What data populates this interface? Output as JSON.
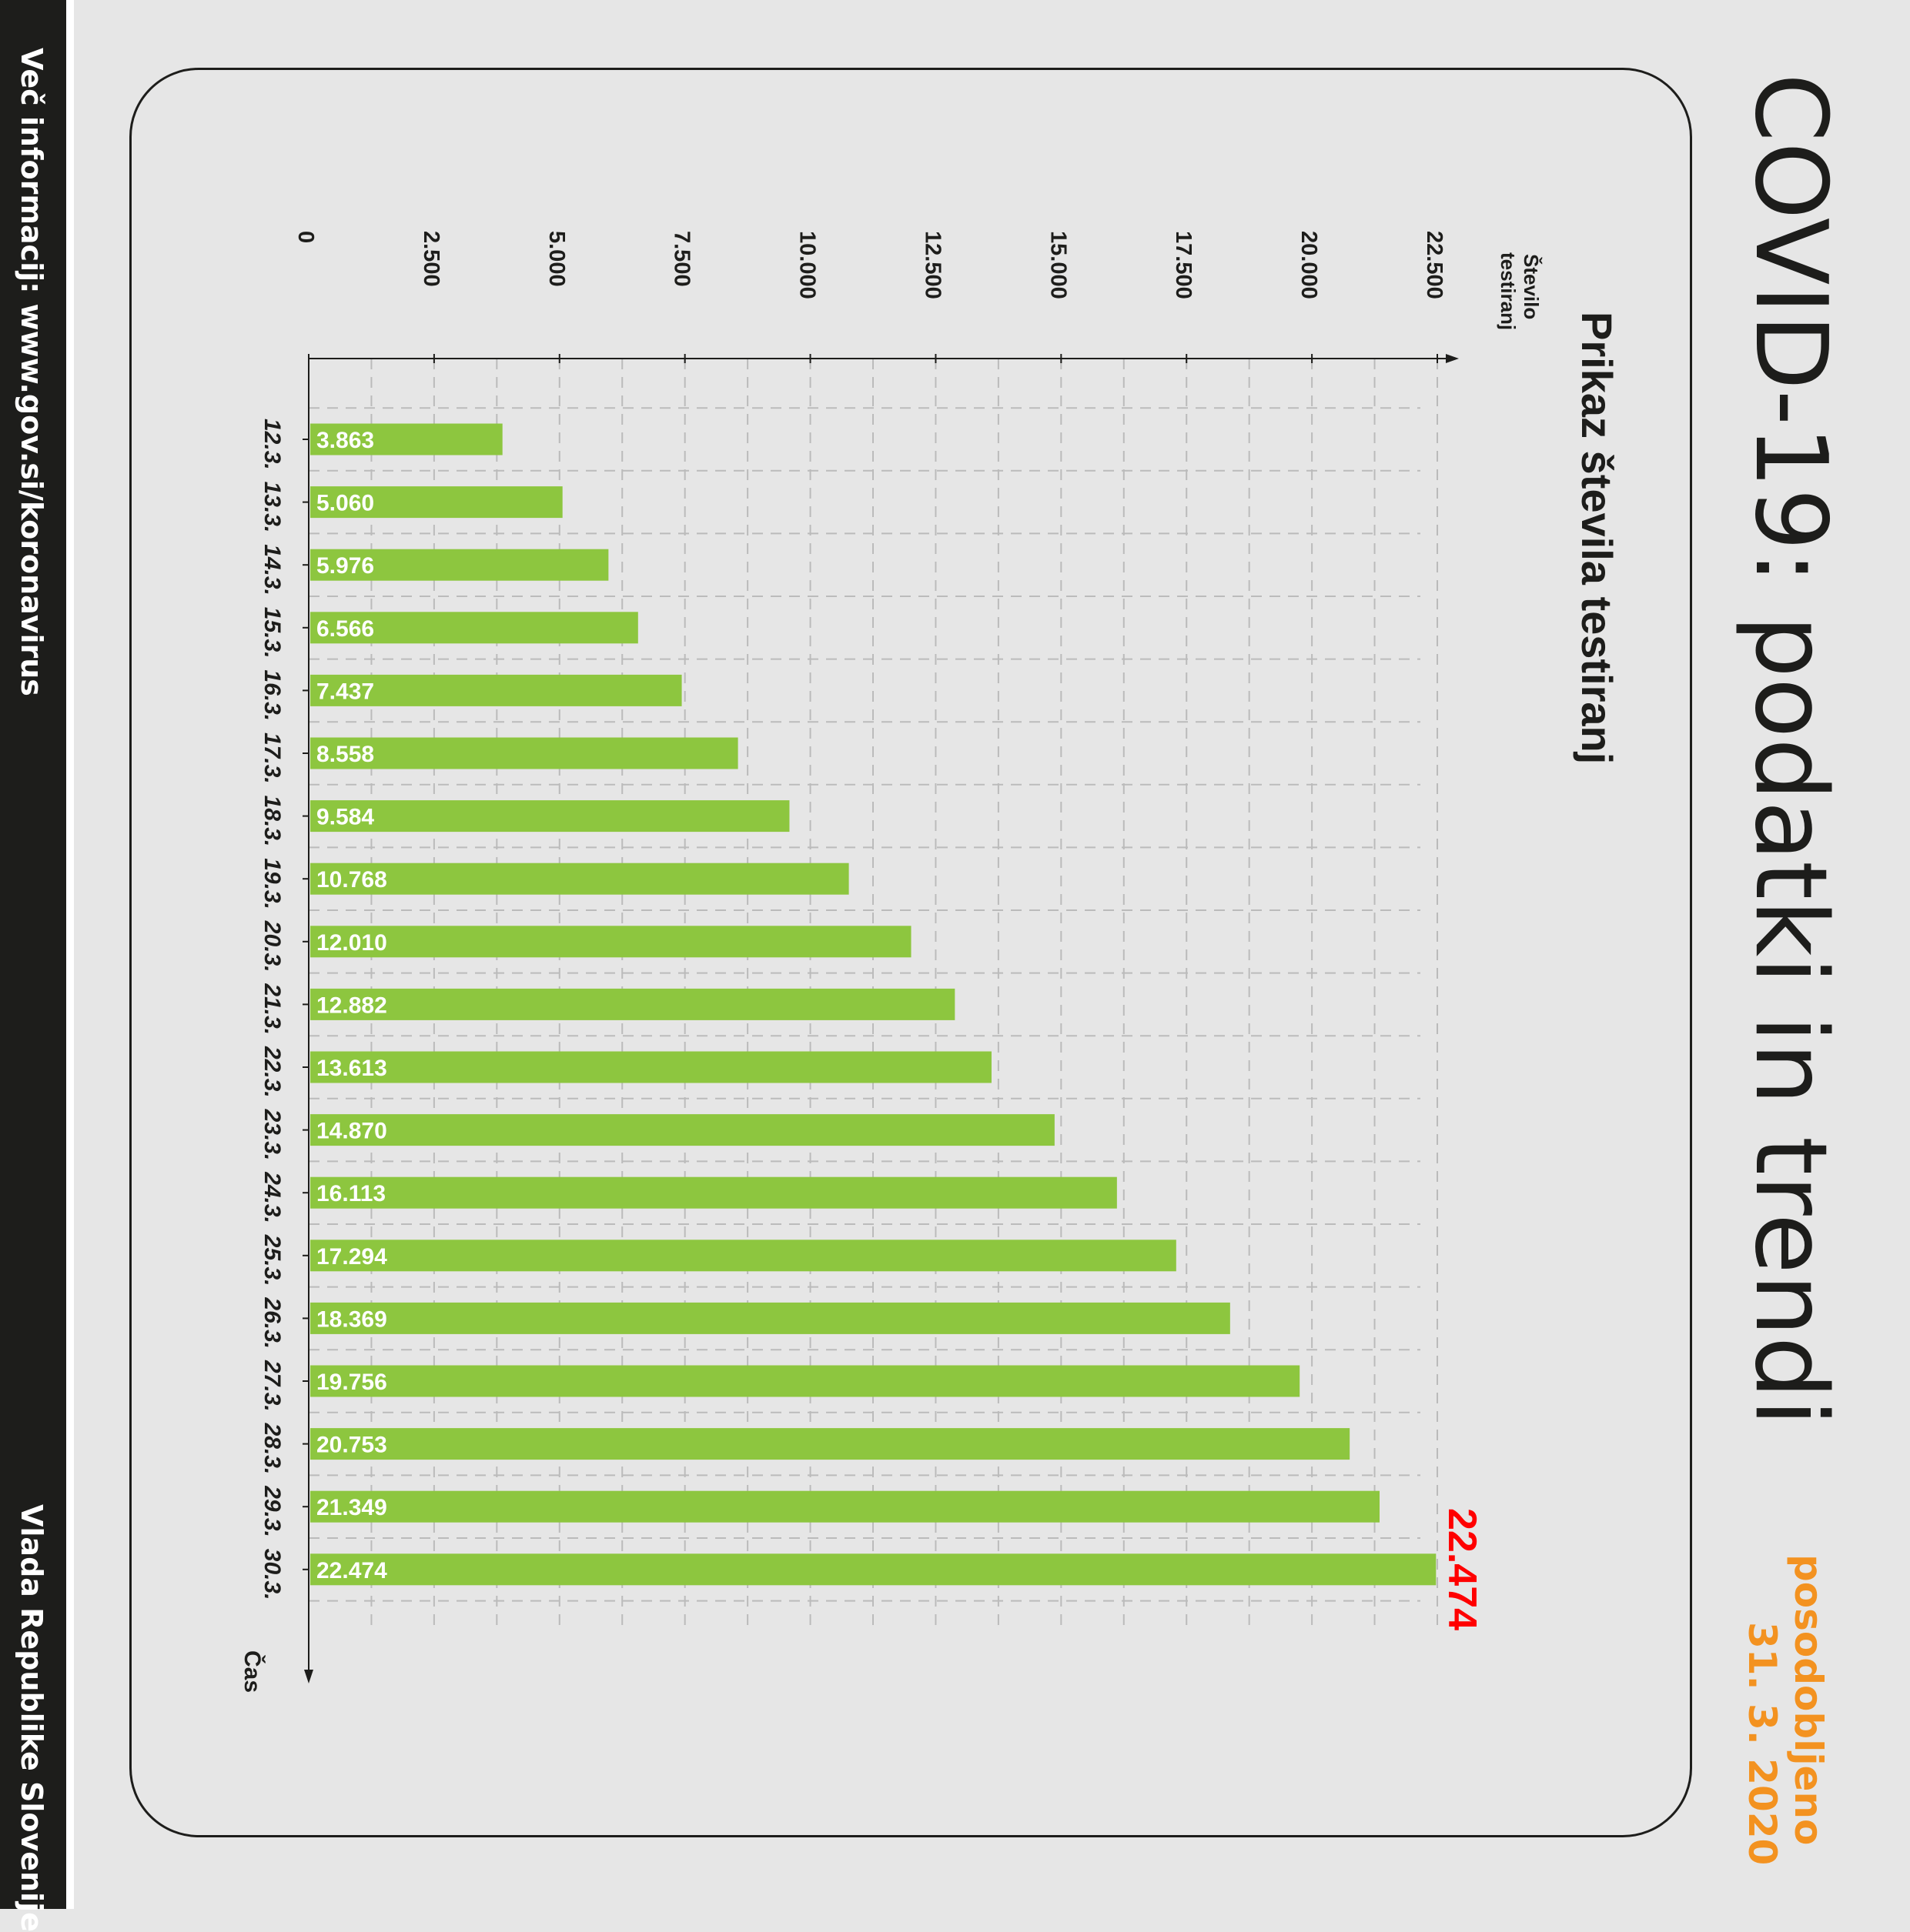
{
  "sidebar": {
    "more_info": "Več informacij: www.gov.si/koronavirus",
    "government": "Vlada Republike Slovenije"
  },
  "header": {
    "title": "COVID-19: podatki in trendi",
    "updated_label": "posodobljeno",
    "updated_date": "31. 3. 2020"
  },
  "colors": {
    "bar": "#8dc63f",
    "highlight": "#ff0000",
    "accent": "#f39220",
    "text": "#1d1d1b"
  },
  "chart_data": {
    "type": "bar",
    "orientation": "horizontal",
    "title": "Prikaz števila testiranj",
    "xlabel": "Število testiranj",
    "ylabel": "Čas",
    "categories": [
      "12.3.",
      "13.3.",
      "14.3.",
      "15.3.",
      "16.3.",
      "17.3.",
      "18.3.",
      "19.3.",
      "20.3.",
      "21.3.",
      "22.3.",
      "23.3.",
      "24.3.",
      "25.3.",
      "26.3.",
      "27.3.",
      "28.3.",
      "29.3.",
      "30.3."
    ],
    "values": [
      3863,
      5060,
      5976,
      6566,
      7437,
      8558,
      9584,
      10768,
      12010,
      12882,
      13613,
      14870,
      16113,
      17294,
      18369,
      19756,
      20753,
      21349,
      22474
    ],
    "value_labels": [
      "3.863",
      "5.060",
      "5.976",
      "6.566",
      "7.437",
      "8.558",
      "9.584",
      "10.768",
      "12.010",
      "12.882",
      "13.613",
      "14.870",
      "16.113",
      "17.294",
      "18.369",
      "19.756",
      "20.753",
      "21.349",
      "22.474"
    ],
    "ticks": [
      0,
      2500,
      5000,
      7500,
      10000,
      12500,
      15000,
      17500,
      20000,
      22500
    ],
    "tick_labels": [
      "0",
      "2.500",
      "5.000",
      "7.500",
      "10.000",
      "12.500",
      "15.000",
      "17.500",
      "20.000",
      "22.500"
    ],
    "xlim": [
      0,
      22500
    ],
    "grid": true,
    "highlight_label": "22.474"
  }
}
